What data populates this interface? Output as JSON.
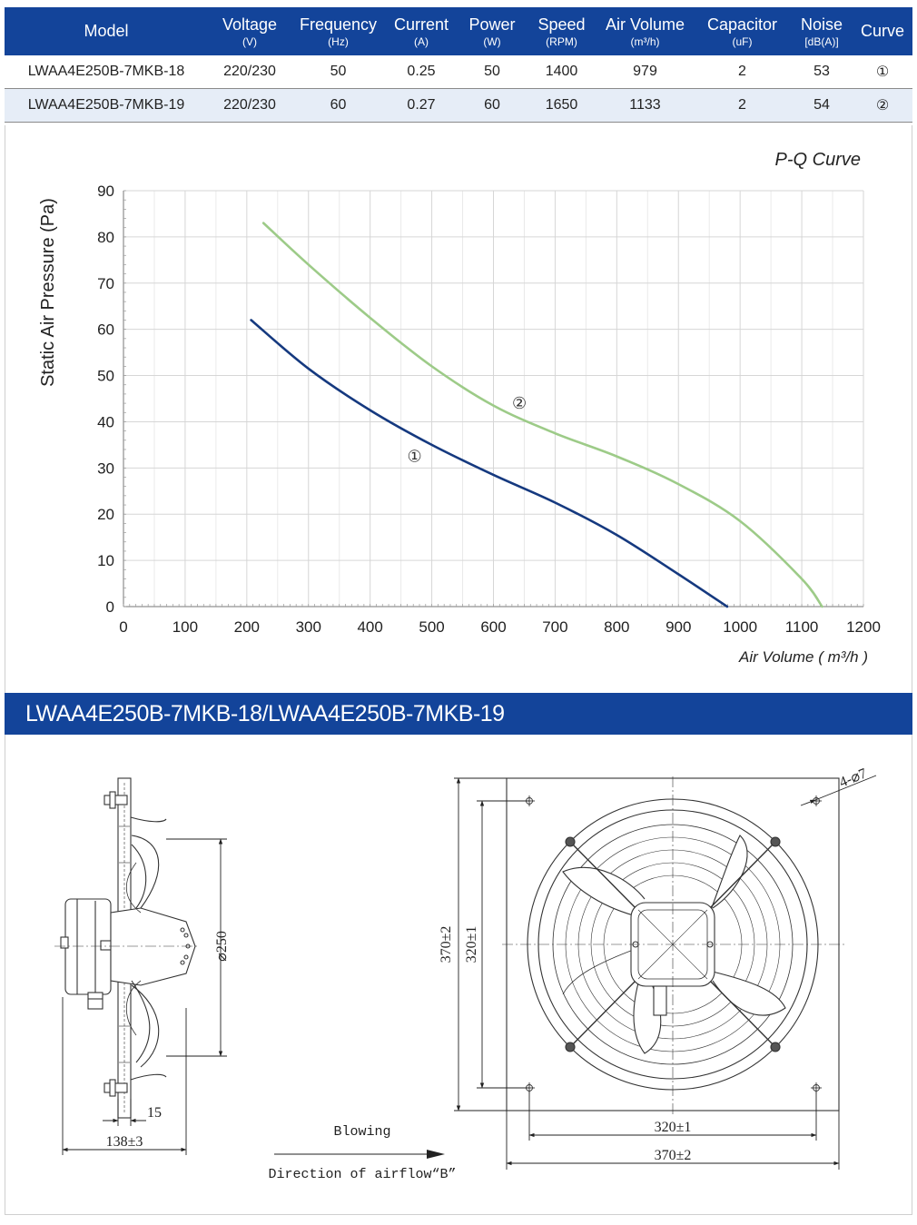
{
  "table": {
    "headers": [
      {
        "label": "Model",
        "unit": ""
      },
      {
        "label": "Voltage",
        "unit": "(V)"
      },
      {
        "label": "Frequency",
        "unit": "(Hz)"
      },
      {
        "label": "Current",
        "unit": "(A)"
      },
      {
        "label": "Power",
        "unit": "(W)"
      },
      {
        "label": "Speed",
        "unit": "(RPM)"
      },
      {
        "label": "Air Volume",
        "unit": "(m³/h)"
      },
      {
        "label": "Capacitor",
        "unit": "(uF)"
      },
      {
        "label": "Noise",
        "unit": "[dB(A)]"
      },
      {
        "label": "Curve",
        "unit": ""
      }
    ],
    "rows": [
      [
        "LWAA4E250B-7MKB-18",
        "220/230",
        "50",
        "0.25",
        "50",
        "1400",
        "979",
        "2",
        "53",
        "①"
      ],
      [
        "LWAA4E250B-7MKB-19",
        "220/230",
        "60",
        "0.27",
        "60",
        "1650",
        "1133",
        "2",
        "54",
        "②"
      ]
    ]
  },
  "chart_data": {
    "type": "line",
    "title": "P-Q Curve",
    "xlabel": "Air Volume ( m³/h )",
    "ylabel": "Static Air Pressure  (Pa)",
    "xlim": [
      0,
      1200
    ],
    "ylim": [
      0,
      90
    ],
    "x_ticks": [
      0,
      100,
      200,
      300,
      400,
      500,
      600,
      700,
      800,
      900,
      1000,
      1100,
      1200
    ],
    "y_ticks": [
      0,
      10,
      20,
      30,
      40,
      50,
      60,
      70,
      80,
      90
    ],
    "grid": true,
    "series": [
      {
        "name": "①",
        "color": "#15397f",
        "x": [
          207,
          300,
          400,
          500,
          600,
          700,
          800,
          900,
          979
        ],
        "y": [
          62,
          51.5,
          42.5,
          35,
          28.5,
          22.5,
          15.5,
          7,
          0
        ]
      },
      {
        "name": "②",
        "color": "#9dcb88",
        "x": [
          227,
          300,
          400,
          500,
          600,
          700,
          800,
          900,
          1000,
          1100,
          1133
        ],
        "y": [
          83,
          74,
          62.5,
          52,
          43.5,
          37.5,
          32.5,
          26.5,
          18.5,
          6,
          0
        ]
      }
    ],
    "series_label_positions": [
      {
        "name": "①",
        "x": 472,
        "y": 32.5
      },
      {
        "name": "②",
        "x": 642,
        "y": 44
      }
    ]
  },
  "banner": {
    "title": "LWAA4E250B-7MKB-18/LWAA4E250B-7MKB-19"
  },
  "drawing": {
    "dim_fan_dia": "⌀250",
    "dim_depth": "138±3",
    "dim_flange": "15",
    "dim_height_outer": "370±2",
    "dim_height_inner": "320±1",
    "dim_width_inner": "320±1",
    "dim_width_outer": "370±2",
    "dim_holes": "4-⌀7",
    "airflow_label": "Blowing",
    "airflow_direction": "Direction of airflow“B”"
  },
  "colors": {
    "header_blue": "#13449a",
    "row_tint": "#e6edf7",
    "curve_1": "#15397f",
    "curve_2": "#9dcb88"
  }
}
